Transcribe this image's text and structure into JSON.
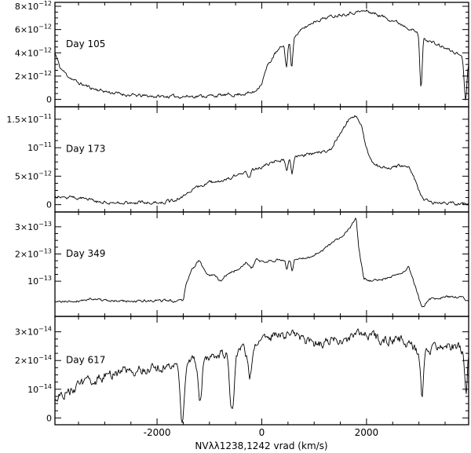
{
  "chart_data": {
    "type": "line",
    "xlabel": "NVλλ1238,1242 vrad (km/s)",
    "xlim": [
      -3950,
      3950
    ],
    "x_ticks": [
      {
        "value": -2000,
        "label": "-2000"
      },
      {
        "value": 0,
        "label": "0"
      },
      {
        "value": 2000,
        "label": "2000"
      }
    ],
    "panels": [
      {
        "label": "Day 105",
        "ylim": [
          -0.3,
          8.0
        ],
        "y_ticks": [
          {
            "value": 0,
            "label": "0"
          },
          {
            "value": 2,
            "label": "2×10",
            "exp": "−12"
          },
          {
            "value": 4,
            "label": "4×10",
            "exp": "−12"
          },
          {
            "value": 6,
            "label": "6×10",
            "exp": "−12"
          },
          {
            "value": 8,
            "label": "8×10",
            "exp": "−12"
          }
        ],
        "profile": [
          [
            -3950,
            4.0
          ],
          [
            -3850,
            2.7
          ],
          [
            -3700,
            2.0
          ],
          [
            -3500,
            1.4
          ],
          [
            -3200,
            0.9
          ],
          [
            -2900,
            0.6
          ],
          [
            -2500,
            0.35
          ],
          [
            -2000,
            0.25
          ],
          [
            -1500,
            0.25
          ],
          [
            -1000,
            0.3
          ],
          [
            -500,
            0.4
          ],
          [
            -150,
            0.6
          ],
          [
            0,
            1.4
          ],
          [
            100,
            2.8
          ],
          [
            250,
            3.9
          ],
          [
            400,
            4.6
          ],
          [
            600,
            5.3
          ],
          [
            800,
            6.1
          ],
          [
            1000,
            6.7
          ],
          [
            1200,
            7.0
          ],
          [
            1500,
            7.3
          ],
          [
            1800,
            7.5
          ],
          [
            2000,
            7.6
          ],
          [
            2200,
            7.3
          ],
          [
            2500,
            6.8
          ],
          [
            2800,
            6.2
          ],
          [
            3000,
            5.6
          ],
          [
            3200,
            5.0
          ],
          [
            3500,
            4.4
          ],
          [
            3800,
            3.8
          ],
          [
            3950,
            3.3
          ]
        ],
        "features": [
          [
            470,
            -2.0,
            22
          ],
          [
            570,
            -2.4,
            20
          ],
          [
            3040,
            -4.5,
            22
          ],
          [
            3890,
            -3.5,
            25
          ]
        ],
        "noise": 0.12,
        "seed": 11
      },
      {
        "label": "Day 173",
        "ylim": [
          -0.6,
          16.5
        ],
        "y_ticks": [
          {
            "value": 0,
            "label": "0"
          },
          {
            "value": 5,
            "label": "5×10",
            "exp": "−12"
          },
          {
            "value": 10,
            "label": "10",
            "exp": "−11"
          },
          {
            "value": 15,
            "label": "1.5×10",
            "exp": "−11"
          }
        ],
        "profile": [
          [
            -3950,
            1.6
          ],
          [
            -3750,
            1.4
          ],
          [
            -3500,
            1.2
          ],
          [
            -3250,
            1.0
          ],
          [
            -3150,
            0.6
          ],
          [
            -2900,
            0.4
          ],
          [
            -2500,
            0.35
          ],
          [
            -2000,
            0.4
          ],
          [
            -1700,
            0.6
          ],
          [
            -1500,
            1.5
          ],
          [
            -1300,
            2.8
          ],
          [
            -1000,
            3.8
          ],
          [
            -700,
            4.5
          ],
          [
            -400,
            5.4
          ],
          [
            0,
            6.6
          ],
          [
            200,
            7.5
          ],
          [
            500,
            8.2
          ],
          [
            800,
            8.6
          ],
          [
            1100,
            9.2
          ],
          [
            1300,
            9.6
          ],
          [
            1500,
            12.5
          ],
          [
            1650,
            14.8
          ],
          [
            1800,
            15.6
          ],
          [
            1900,
            14.0
          ],
          [
            2000,
            10.0
          ],
          [
            2100,
            7.5
          ],
          [
            2300,
            6.4
          ],
          [
            2600,
            6.7
          ],
          [
            2800,
            6.8
          ],
          [
            2900,
            5.0
          ],
          [
            3000,
            2.5
          ],
          [
            3100,
            0.8
          ],
          [
            3300,
            0.3
          ],
          [
            3600,
            0.2
          ],
          [
            3950,
            0.15
          ]
        ],
        "features": [
          [
            -250,
            -1.4,
            25
          ],
          [
            480,
            -2.5,
            20
          ],
          [
            580,
            -2.6,
            20
          ]
        ],
        "noise": 0.25,
        "seed": 27
      },
      {
        "label": "Day 349",
        "ylim": [
          -0.15,
          3.4
        ],
        "y_ticks": [
          {
            "value": 1,
            "label": "10",
            "exp": "−13"
          },
          {
            "value": 2,
            "label": "2×10",
            "exp": "−13"
          },
          {
            "value": 3,
            "label": "3×10",
            "exp": "−13"
          }
        ],
        "profile": [
          [
            -3950,
            0.22
          ],
          [
            -3400,
            0.3
          ],
          [
            -3200,
            0.38
          ],
          [
            -3000,
            0.28
          ],
          [
            -2500,
            0.26
          ],
          [
            -2000,
            0.28
          ],
          [
            -1700,
            0.28
          ],
          [
            -1500,
            0.3
          ],
          [
            -1450,
            0.9
          ],
          [
            -1350,
            1.4
          ],
          [
            -1200,
            1.5
          ],
          [
            -1000,
            1.2
          ],
          [
            -700,
            1.2
          ],
          [
            -400,
            1.5
          ],
          [
            -200,
            1.45
          ],
          [
            0,
            1.7
          ],
          [
            300,
            1.8
          ],
          [
            600,
            1.8
          ],
          [
            900,
            1.85
          ],
          [
            1200,
            2.2
          ],
          [
            1500,
            2.6
          ],
          [
            1700,
            3.0
          ],
          [
            1800,
            3.3
          ],
          [
            1850,
            2.2
          ],
          [
            1950,
            1.1
          ],
          [
            2100,
            1.0
          ],
          [
            2400,
            1.1
          ],
          [
            2700,
            1.3
          ],
          [
            2800,
            1.55
          ],
          [
            2900,
            1.0
          ],
          [
            3000,
            0.4
          ],
          [
            3100,
            0.2
          ],
          [
            3200,
            0.35
          ],
          [
            3500,
            0.42
          ],
          [
            3800,
            0.4
          ],
          [
            3950,
            0.3
          ]
        ],
        "features": [
          [
            -1200,
            0.25,
            60
          ],
          [
            -800,
            -0.2,
            40
          ],
          [
            -300,
            0.2,
            40
          ],
          [
            -100,
            0.25,
            40
          ],
          [
            480,
            -0.4,
            20
          ],
          [
            580,
            -0.45,
            20
          ],
          [
            3070,
            -0.2,
            40
          ]
        ],
        "noise": 0.04,
        "seed": 41
      },
      {
        "label": "Day 617",
        "ylim": [
          -0.1,
          3.4
        ],
        "y_ticks": [
          {
            "value": 0,
            "label": "0"
          },
          {
            "value": 1,
            "label": "10",
            "exp": "−14"
          },
          {
            "value": 2,
            "label": "2×10",
            "exp": "−14"
          },
          {
            "value": 3,
            "label": "3×10",
            "exp": "−14"
          }
        ],
        "profile": [
          [
            -3950,
            0.75
          ],
          [
            -3500,
            1.1
          ],
          [
            -3000,
            1.45
          ],
          [
            -2500,
            1.65
          ],
          [
            -2000,
            1.75
          ],
          [
            -1500,
            1.9
          ],
          [
            -1000,
            2.2
          ],
          [
            -500,
            2.35
          ],
          [
            0,
            2.7
          ],
          [
            300,
            2.95
          ],
          [
            600,
            2.9
          ],
          [
            1000,
            2.6
          ],
          [
            1500,
            2.7
          ],
          [
            2000,
            2.95
          ],
          [
            2300,
            2.7
          ],
          [
            2700,
            2.7
          ],
          [
            3000,
            2.3
          ],
          [
            3300,
            2.4
          ],
          [
            3600,
            2.5
          ],
          [
            3950,
            2.3
          ]
        ],
        "features": [
          [
            -1520,
            -2.0,
            35
          ],
          [
            -1180,
            -1.4,
            35
          ],
          [
            -570,
            -2.0,
            45
          ],
          [
            -230,
            -1.1,
            40
          ],
          [
            3060,
            -1.5,
            28
          ],
          [
            3900,
            -1.6,
            25
          ]
        ],
        "noise": 0.14,
        "seed": 63
      }
    ]
  }
}
